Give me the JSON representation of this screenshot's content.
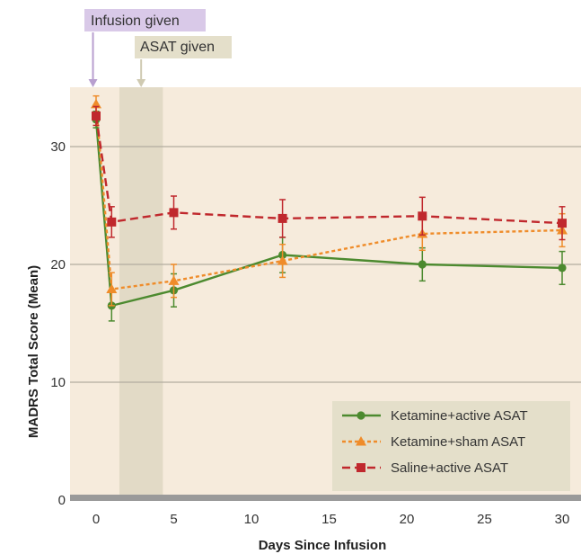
{
  "chart_data": {
    "type": "line",
    "xlabel": "Days Since Infusion",
    "ylabel": "MADRS Total Score (Mean)",
    "xlim": [
      -1.5,
      31.5
    ],
    "ylim": [
      0,
      36
    ],
    "xticks": [
      0,
      5,
      10,
      15,
      20,
      25,
      30
    ],
    "yticks": [
      0,
      10,
      20,
      30
    ],
    "grid": "horizontal",
    "legend_position": "bottom-right",
    "background": "#f6ebdc",
    "annotations": [
      {
        "id": "infusion",
        "label": "Infusion given",
        "x": -0.2,
        "color": "#b89fcf",
        "bg": "#d9c9e8"
      },
      {
        "id": "asat",
        "label": "ASAT given",
        "x": 2.9,
        "color": "#cfcab2",
        "bg": "#e4dfca",
        "band": [
          1.5,
          4.3
        ]
      }
    ],
    "series": [
      {
        "name": "Ketamine+active ASAT",
        "color": "#4c8a2f",
        "dash": "solid",
        "marker": "circle",
        "x": [
          0,
          1,
          5,
          12,
          21,
          30
        ],
        "y": [
          32.3,
          16.5,
          17.8,
          20.8,
          20.0,
          19.7
        ],
        "err": [
          0.7,
          1.3,
          1.4,
          1.5,
          1.4,
          1.4
        ]
      },
      {
        "name": "Ketamine+sham ASAT",
        "color": "#ef8c2a",
        "dash": "dotted",
        "marker": "triangle",
        "x": [
          0,
          1,
          5,
          12,
          21,
          30
        ],
        "y": [
          33.6,
          17.9,
          18.6,
          20.3,
          22.6,
          22.9
        ],
        "err": [
          0.7,
          1.4,
          1.4,
          1.4,
          1.4,
          1.4
        ]
      },
      {
        "name": "Saline+active ASAT",
        "color": "#c0282d",
        "dash": "dashed",
        "marker": "square",
        "x": [
          0,
          1,
          5,
          12,
          21,
          30
        ],
        "y": [
          32.6,
          23.6,
          24.4,
          23.9,
          24.1,
          23.5
        ],
        "err": [
          0.8,
          1.3,
          1.4,
          1.6,
          1.6,
          1.4
        ]
      }
    ]
  }
}
